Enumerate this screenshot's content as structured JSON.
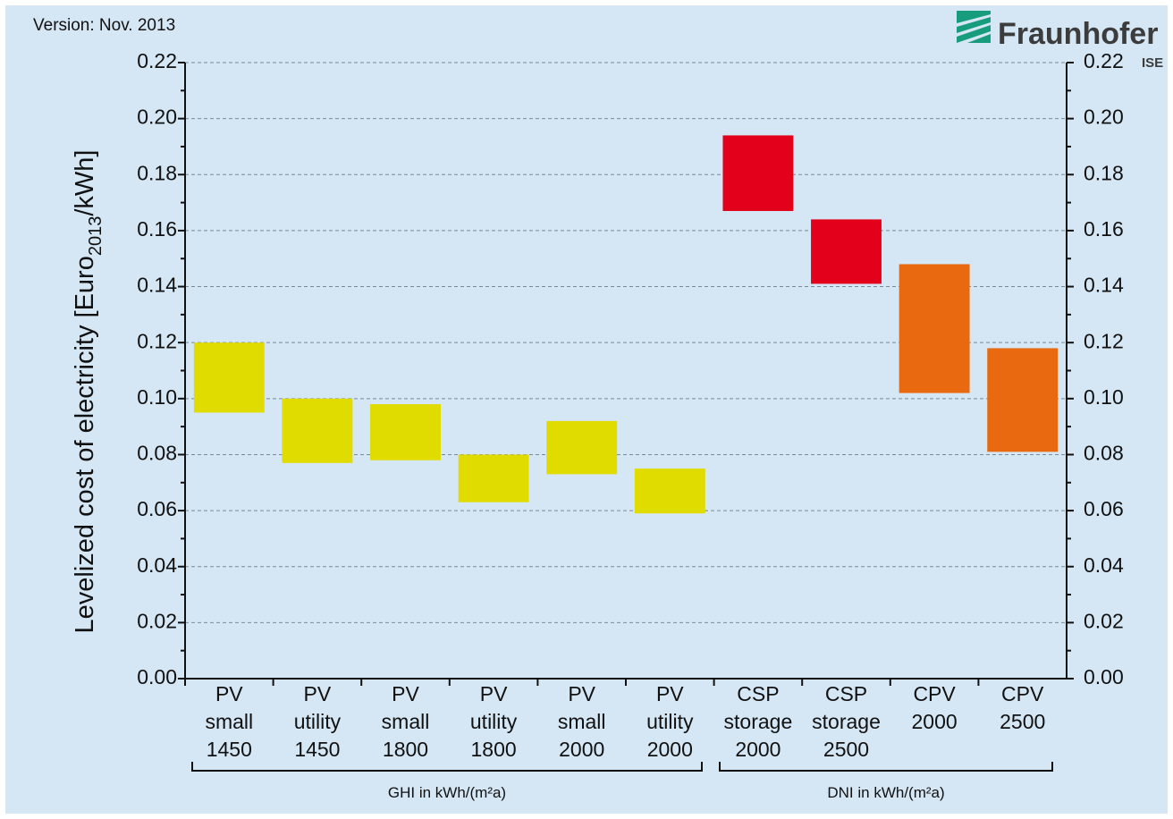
{
  "header": {
    "version": "Version: Nov. 2013",
    "logo": "Fraunhofer",
    "logo_sub": "ISE"
  },
  "chart_data": {
    "type": "floating-bar",
    "y_label": [
      "Levelized cost of electricity [Euro",
      "2013",
      "/kWh]"
    ],
    "categories": [
      [
        "PV",
        "small",
        "1450"
      ],
      [
        "PV",
        "utility",
        "1450"
      ],
      [
        "PV",
        "small",
        "1800"
      ],
      [
        "PV",
        "utility",
        "1800"
      ],
      [
        "PV",
        "small",
        "2000"
      ],
      [
        "PV",
        "utility",
        "2000"
      ],
      [
        "CSP",
        "storage",
        "2000"
      ],
      [
        "CSP",
        "storage",
        "2500"
      ],
      [
        "CPV",
        "2000"
      ],
      [
        "CPV",
        "2500"
      ]
    ],
    "values": [
      [
        0.095,
        0.12
      ],
      [
        0.077,
        0.1
      ],
      [
        0.078,
        0.098
      ],
      [
        0.063,
        0.08
      ],
      [
        0.073,
        0.092
      ],
      [
        0.059,
        0.075
      ],
      [
        0.167,
        0.194
      ],
      [
        0.141,
        0.164
      ],
      [
        0.102,
        0.148
      ],
      [
        0.081,
        0.118
      ]
    ],
    "colors": [
      "#e0dc00",
      "#e0dc00",
      "#e0dc00",
      "#e0dc00",
      "#e0dc00",
      "#e0dc00",
      "#e2001a",
      "#e2001a",
      "#e8690f",
      "#e8690f"
    ],
    "groups": [
      "GHI in kWh/(m²a)",
      "DNI in kWh/(m²a)"
    ],
    "ylim": [
      0,
      0.22
    ],
    "yticks": [
      {
        "value": 0,
        "label": "0.00"
      },
      {
        "value": 0.02,
        "label": "0.02"
      },
      {
        "value": 0.04,
        "label": "0.04"
      },
      {
        "value": 0.06,
        "label": "0.06"
      },
      {
        "value": 0.08,
        "label": "0.08"
      },
      {
        "value": 0.1,
        "label": "0.10"
      },
      {
        "value": 0.12,
        "label": "0.12"
      },
      {
        "value": 0.14,
        "label": "0.14"
      },
      {
        "value": 0.16,
        "label": "0.16"
      },
      {
        "value": 0.18,
        "label": "0.18"
      },
      {
        "value": 0.2,
        "label": "0.20"
      },
      {
        "value": 0.22,
        "label": "0.22"
      }
    ],
    "grid": true
  }
}
